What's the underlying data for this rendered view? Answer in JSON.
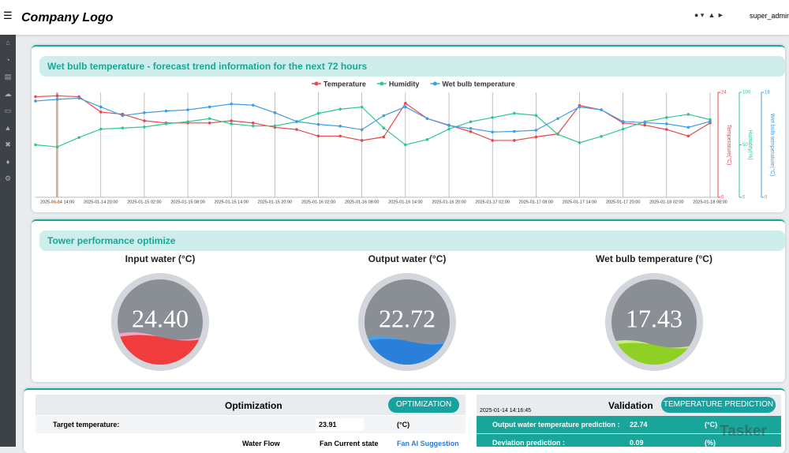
{
  "header": {
    "logo": "Company Logo",
    "user": "super_admin"
  },
  "chart_data": {
    "type": "line",
    "title": "Wet bulb temperature - forecast trend information for the next 72 hours",
    "now_label": "Now",
    "categories": [
      null,
      "2025-01-14 14:00",
      null,
      "2025-01-14 20:00",
      null,
      "2025-01-15 02:00",
      null,
      "2025-01-15 08:00",
      null,
      "2025-01-15 14:00",
      null,
      "2025-01-15 20:00",
      null,
      "2025-01-16 02:00",
      null,
      "2025-01-16 08:00",
      null,
      "2025-01-16 14:00",
      null,
      "2025-01-16 20:00",
      null,
      "2025-01-17 02:00",
      null,
      "2025-01-17 08:00",
      null,
      "2025-01-17 14:00",
      null,
      "2025-01-17 20:00",
      null,
      "2025-01-18 02:00",
      null,
      "2025-01-18 08:00"
    ],
    "series": [
      {
        "name": "Temperature",
        "color": "#e8474c",
        "axis_title": "Temperature(°C)",
        "ylim": [
          0,
          24
        ],
        "yticks": [
          0,
          24
        ],
        "values": [
          23,
          23.2,
          23,
          19.5,
          19,
          17.5,
          17,
          17,
          17,
          17.5,
          17,
          16,
          15.5,
          14,
          14,
          13,
          13.8,
          21.5,
          18,
          16.5,
          15,
          13,
          13,
          13.8,
          14.5,
          21,
          20,
          17,
          16.5,
          15.5,
          14,
          17
        ]
      },
      {
        "name": "Humidity",
        "color": "#2fc88f",
        "axis_title": "Humidity(%)",
        "ylim": [
          0,
          100
        ],
        "yticks": [
          0,
          50,
          100
        ],
        "values": [
          50,
          48,
          57,
          65,
          66,
          67,
          70,
          72,
          75,
          70,
          68,
          68,
          72,
          80,
          84,
          86,
          66,
          50,
          55,
          65,
          72,
          76,
          80,
          78,
          60,
          52,
          58,
          65,
          72,
          76,
          79,
          74
        ]
      },
      {
        "name": "Wet bulb temperature",
        "color": "#3d9ee8",
        "axis_title": "Wet bulb temperature(°C)",
        "ylim": [
          0,
          18
        ],
        "yticks": [
          0,
          18
        ],
        "values": [
          16.5,
          16.8,
          17,
          15.5,
          14,
          14.5,
          14.8,
          15,
          15.5,
          16,
          15.8,
          14.5,
          13,
          12.5,
          12.2,
          11.6,
          14,
          15.5,
          13.5,
          12.3,
          11.8,
          11.2,
          11.3,
          11.5,
          13.5,
          15.5,
          15,
          13,
          12.8,
          12.6,
          12,
          13
        ]
      }
    ]
  },
  "tower": {
    "title": "Tower performance optimize",
    "gauges": [
      {
        "label": "Input water (°C)",
        "value": "24.40"
      },
      {
        "label": "Output water (°C)",
        "value": "22.72"
      },
      {
        "label": "Wet bulb temperature (°C)",
        "value": "17.43"
      }
    ]
  },
  "optimization": {
    "title": "Optimization",
    "button": "OPTIMIZATION",
    "target_label": "Target temperature:",
    "target_value": "23.91",
    "target_unit": "(°C)",
    "columns": [
      "Water Flow",
      "Fan Current state",
      "Fan AI Suggestion"
    ]
  },
  "validation": {
    "title": "Validation",
    "button": "TEMPERATURE PREDICTION",
    "timestamp": "2025-01-14 14:16:45",
    "rows": [
      [
        "Output water temperature prediction :",
        "22.74",
        "(°C)"
      ],
      [
        "Deviation prediction :",
        "0.09",
        "(%)"
      ]
    ],
    "watermark": "Tasker"
  }
}
